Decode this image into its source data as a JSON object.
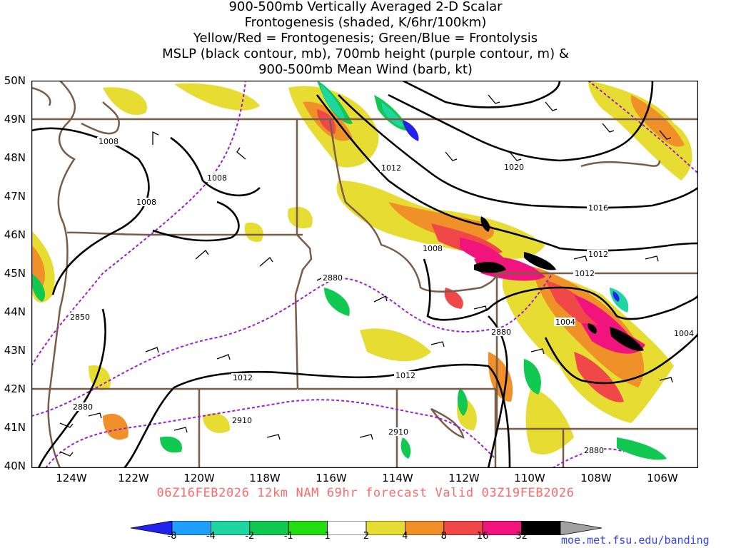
{
  "title": {
    "line1": "900-500mb Vertically Averaged 2-D Scalar",
    "line2": "Frontogenesis (shaded, K/6hr/100km)",
    "line3": "Yellow/Red = Frontogenesis;  Green/Blue = Frontolysis",
    "line4": "MSLP (black contour, mb), 700mb height (purple contour, m) &",
    "line5": "900-500mb Mean Wind (barb, kt)"
  },
  "valid_line": "06Z16FEB2026 12km NAM 69hr forecast Valid 03Z19FEB2026",
  "credit": "moe.met.fsu.edu/banding",
  "lat_labels": [
    "50N",
    "49N",
    "48N",
    "47N",
    "46N",
    "45N",
    "44N",
    "43N",
    "42N",
    "41N",
    "40N"
  ],
  "lon_labels": [
    "124W",
    "122W",
    "120W",
    "118W",
    "116W",
    "114W",
    "112W",
    "110W",
    "108W",
    "106W"
  ],
  "colorbar": {
    "values": [
      "-8",
      "-4",
      "-2",
      "-1",
      "1",
      "2",
      "4",
      "8",
      "16",
      "32"
    ],
    "colors": [
      "#2222ee",
      "#1fa0ff",
      "#1fd6a0",
      "#11c850",
      "#22dd11",
      "#ffffff",
      "#e6dc32",
      "#f09028",
      "#f04848",
      "#f0147c",
      "#000000",
      "#a0a0a0"
    ]
  },
  "isobars": [
    "1008",
    "1008",
    "1008",
    "1012",
    "1012",
    "1016",
    "1020",
    "1012",
    "1008",
    "1004",
    "1004",
    "1012",
    "1012"
  ],
  "heights": [
    "2850",
    "2880",
    "2880",
    "2910",
    "2910",
    "2880",
    "2880"
  ],
  "colors": {
    "isobar": "#000000",
    "height": "#9d1ed0",
    "border": "#7a5c48",
    "frame": "#000000"
  }
}
